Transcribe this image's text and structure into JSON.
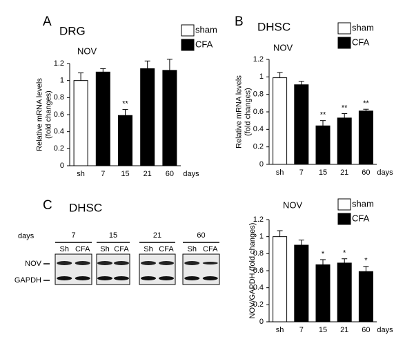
{
  "chart_data": [
    {
      "type": "bar",
      "panel": "A",
      "title": "DRG",
      "subtitle": "NOV",
      "ylabel": [
        "Relative mRNA levels",
        "(fold changes)"
      ],
      "xlabel": "days",
      "categories": [
        "sh",
        "7",
        "15",
        "21",
        "60"
      ],
      "series": [
        {
          "name": "sham",
          "color": "#ffffff",
          "values": [
            1.0,
            null,
            null,
            null,
            null
          ],
          "errors": [
            0.09,
            null,
            null,
            null,
            null
          ]
        },
        {
          "name": "CFA",
          "color": "#000000",
          "values": [
            null,
            1.1,
            0.59,
            1.14,
            1.12
          ],
          "errors": [
            null,
            0.04,
            0.07,
            0.09,
            0.13
          ]
        }
      ],
      "significance": [
        null,
        null,
        "**",
        null,
        null
      ],
      "ylim": [
        0,
        1.2
      ],
      "yticks": [
        0,
        0.2,
        0.4,
        0.6,
        0.8,
        1,
        1.2
      ]
    },
    {
      "type": "bar",
      "panel": "B",
      "title": "DHSC",
      "subtitle": "NOV",
      "ylabel": [
        "Relative mRNA levels",
        "(fold changes)"
      ],
      "xlabel": "days",
      "categories": [
        "sh",
        "7",
        "15",
        "21",
        "60"
      ],
      "series": [
        {
          "name": "sham",
          "color": "#ffffff",
          "values": [
            0.99,
            null,
            null,
            null,
            null
          ],
          "errors": [
            0.06,
            null,
            null,
            null,
            null
          ]
        },
        {
          "name": "CFA",
          "color": "#000000",
          "values": [
            null,
            0.91,
            0.44,
            0.53,
            0.61
          ],
          "errors": [
            null,
            0.04,
            0.06,
            0.05,
            0.02
          ]
        }
      ],
      "significance": [
        null,
        null,
        "**",
        "**",
        "**"
      ],
      "ylim": [
        0,
        1.2
      ],
      "yticks": [
        0,
        0.2,
        0.4,
        0.6,
        0.8,
        1,
        1.2
      ]
    },
    {
      "type": "bar",
      "subtitle": "NOV",
      "ylabel": [
        "NOV/GAPDH (fold changes)"
      ],
      "xlabel": "days",
      "categories": [
        "sh",
        "7",
        "15",
        "21",
        "60"
      ],
      "series": [
        {
          "name": "sham",
          "color": "#ffffff",
          "values": [
            1.0,
            null,
            null,
            null,
            null
          ],
          "errors": [
            0.07,
            null,
            null,
            null,
            null
          ]
        },
        {
          "name": "CFA",
          "color": "#000000",
          "values": [
            null,
            0.9,
            0.67,
            0.69,
            0.59
          ],
          "errors": [
            null,
            0.06,
            0.06,
            0.05,
            0.06
          ]
        }
      ],
      "significance": [
        null,
        null,
        "*",
        "*",
        "*"
      ],
      "ylim": [
        0,
        1.2
      ],
      "yticks": [
        0,
        0.2,
        0.4,
        0.6,
        0.8,
        1,
        1.2
      ]
    }
  ],
  "blot": {
    "panel": "C",
    "title": "DHSC",
    "days_label": "days",
    "groups": [
      {
        "day": "7",
        "lanes": [
          "Sh",
          "CFA"
        ]
      },
      {
        "day": "15",
        "lanes": [
          "Sh",
          "CFA"
        ]
      },
      {
        "day": "21",
        "lanes": [
          "Sh",
          "CFA"
        ]
      },
      {
        "day": "60",
        "lanes": [
          "Sh",
          "CFA"
        ]
      }
    ],
    "rows": [
      "NOV",
      "GAPDH"
    ]
  }
}
